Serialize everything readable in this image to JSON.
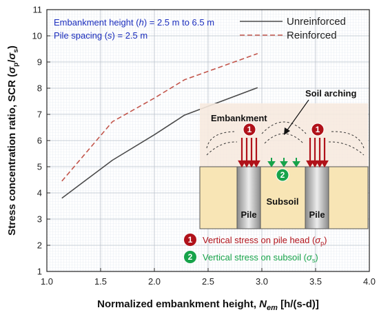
{
  "chart_data": {
    "type": "line",
    "xlabel_prefix": "Normalized embankment height, ",
    "xlabel_symbol": "N",
    "xlabel_sub": "em",
    "xlabel_suffix": " [h/(s-d)]",
    "ylabel_prefix": "Stress concentration ratio, SCR (",
    "ylabel_sigma1": "σ",
    "ylabel_sub1": "p",
    "ylabel_slash": "/",
    "ylabel_sigma2": "σ",
    "ylabel_sub2": "s",
    "ylabel_suffix": ")",
    "xlim": [
      1.0,
      4.0
    ],
    "ylim": [
      1,
      11
    ],
    "xticks": [
      "1.0",
      "1.5",
      "2.0",
      "2.5",
      "3.0",
      "3.5",
      "4.0"
    ],
    "yticks": [
      "1",
      "2",
      "3",
      "4",
      "5",
      "6",
      "7",
      "8",
      "9",
      "10",
      "11"
    ],
    "grid": true,
    "legend_position": "top-right",
    "series": [
      {
        "name": "Unreinforced",
        "color": "#4a4a4a",
        "dash": "solid",
        "points": [
          [
            1.14,
            3.8
          ],
          [
            1.61,
            5.25
          ],
          [
            2.0,
            6.22
          ],
          [
            2.28,
            6.97
          ],
          [
            2.96,
            8.02
          ]
        ]
      },
      {
        "name": "Reinforced",
        "color": "#c2554b",
        "dash": "dashed",
        "points": [
          [
            1.14,
            4.45
          ],
          [
            1.61,
            6.72
          ],
          [
            2.0,
            7.62
          ],
          [
            2.28,
            8.32
          ],
          [
            2.96,
            9.32
          ]
        ]
      }
    ],
    "annotations": {
      "line1_prefix": "Embankment height (",
      "line1_var": "h",
      "line1_suffix": ") = 2.5 m to 6.5 m",
      "line2_prefix": "Pile spacing (",
      "line2_var": "s",
      "line2_suffix": ") = 2.5 m"
    }
  },
  "diagram": {
    "embankment_label": "Embankment",
    "arching_label": "Soil arching",
    "pile_label": "Pile",
    "subsoil_label": "Subsoil",
    "badge1": "1",
    "badge2": "2",
    "legend1_text": "Vertical stress on pile head (",
    "legend1_sigma": "σ",
    "legend1_sub": "p",
    "legend1_close": ")",
    "legend2_text": "Vertical stress on subsoil (",
    "legend2_sigma": "σ",
    "legend2_sub": "s",
    "legend2_close": ")"
  },
  "colors": {
    "embankment_fill": "#f7e9dd",
    "subsoil_fill": "#f8e5b5",
    "pile_gradient_edge": "#8a8a8a",
    "pile_gradient_center": "#e8e8e8",
    "stress_red": "#b0121a",
    "stress_green": "#17a34a",
    "note_blue": "#1a2dbd"
  }
}
